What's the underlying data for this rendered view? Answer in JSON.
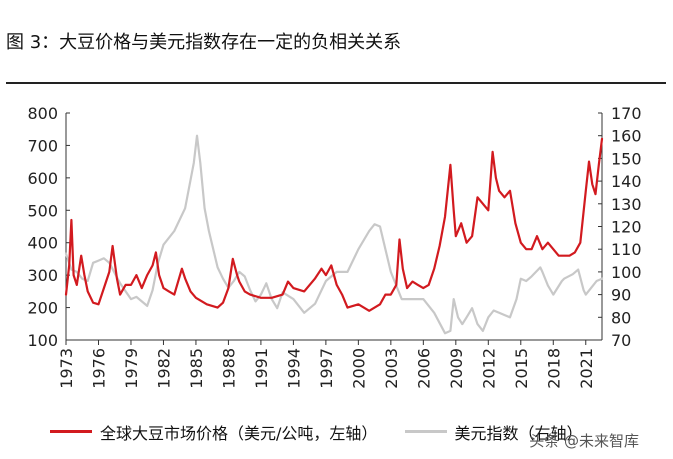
{
  "figure": {
    "title": "图 3：大豆价格与美元指数存在一定的负相关关系",
    "watermark": "头条 @未来智库"
  },
  "chart_data": {
    "type": "line",
    "title": "图 3：大豆价格与美元指数存在一定的负相关关系",
    "x_ticks": [
      "1973",
      "1976",
      "1979",
      "1982",
      "1985",
      "1988",
      "1991",
      "1994",
      "1997",
      "2000",
      "2003",
      "2006",
      "2009",
      "2012",
      "2015",
      "2018",
      "2021"
    ],
    "x_range": [
      1973,
      2022.5
    ],
    "left_axis": {
      "ylim": [
        100,
        800
      ],
      "ticks": [
        800,
        700,
        600,
        500,
        400,
        300,
        200,
        100
      ]
    },
    "right_axis": {
      "ylim": [
        70,
        170
      ],
      "ticks": [
        170,
        160,
        150,
        140,
        130,
        120,
        110,
        100,
        90,
        80,
        70
      ]
    },
    "series": [
      {
        "name": "全球大豆市场价格（美元/公吨，左轴）",
        "axis": "left",
        "color": "#d21a1f",
        "points": [
          [
            1973.0,
            240
          ],
          [
            1973.3,
            330
          ],
          [
            1973.5,
            470
          ],
          [
            1973.7,
            300
          ],
          [
            1974.0,
            270
          ],
          [
            1974.4,
            360
          ],
          [
            1974.7,
            300
          ],
          [
            1975.0,
            250
          ],
          [
            1975.5,
            215
          ],
          [
            1976.0,
            210
          ],
          [
            1976.5,
            260
          ],
          [
            1977.0,
            310
          ],
          [
            1977.3,
            390
          ],
          [
            1977.7,
            290
          ],
          [
            1978.0,
            240
          ],
          [
            1978.5,
            270
          ],
          [
            1979.0,
            270
          ],
          [
            1979.5,
            300
          ],
          [
            1980.0,
            260
          ],
          [
            1980.5,
            300
          ],
          [
            1981.0,
            330
          ],
          [
            1981.3,
            370
          ],
          [
            1981.6,
            300
          ],
          [
            1982.0,
            260
          ],
          [
            1982.5,
            250
          ],
          [
            1983.0,
            240
          ],
          [
            1983.7,
            320
          ],
          [
            1984.0,
            290
          ],
          [
            1984.5,
            250
          ],
          [
            1985.0,
            230
          ],
          [
            1986.0,
            210
          ],
          [
            1987.0,
            200
          ],
          [
            1987.5,
            215
          ],
          [
            1988.0,
            260
          ],
          [
            1988.4,
            350
          ],
          [
            1988.8,
            300
          ],
          [
            1989.0,
            280
          ],
          [
            1989.5,
            250
          ],
          [
            1990.0,
            240
          ],
          [
            1991.0,
            230
          ],
          [
            1992.0,
            230
          ],
          [
            1993.0,
            240
          ],
          [
            1993.5,
            280
          ],
          [
            1994.0,
            260
          ],
          [
            1995.0,
            250
          ],
          [
            1996.0,
            290
          ],
          [
            1996.6,
            320
          ],
          [
            1997.0,
            300
          ],
          [
            1997.5,
            330
          ],
          [
            1998.0,
            270
          ],
          [
            1998.5,
            240
          ],
          [
            1999.0,
            200
          ],
          [
            2000.0,
            210
          ],
          [
            2001.0,
            190
          ],
          [
            2001.5,
            200
          ],
          [
            2002.0,
            210
          ],
          [
            2002.5,
            240
          ],
          [
            2003.0,
            240
          ],
          [
            2003.5,
            270
          ],
          [
            2003.8,
            410
          ],
          [
            2004.1,
            320
          ],
          [
            2004.5,
            260
          ],
          [
            2005.0,
            280
          ],
          [
            2005.5,
            270
          ],
          [
            2006.0,
            260
          ],
          [
            2006.5,
            270
          ],
          [
            2007.0,
            320
          ],
          [
            2007.5,
            390
          ],
          [
            2008.0,
            480
          ],
          [
            2008.5,
            640
          ],
          [
            2008.8,
            500
          ],
          [
            2009.0,
            420
          ],
          [
            2009.5,
            460
          ],
          [
            2010.0,
            400
          ],
          [
            2010.5,
            420
          ],
          [
            2011.0,
            540
          ],
          [
            2011.5,
            520
          ],
          [
            2012.0,
            500
          ],
          [
            2012.4,
            680
          ],
          [
            2012.7,
            600
          ],
          [
            2013.0,
            560
          ],
          [
            2013.5,
            540
          ],
          [
            2014.0,
            560
          ],
          [
            2014.5,
            460
          ],
          [
            2015.0,
            400
          ],
          [
            2015.5,
            380
          ],
          [
            2016.0,
            380
          ],
          [
            2016.5,
            420
          ],
          [
            2017.0,
            380
          ],
          [
            2017.5,
            400
          ],
          [
            2018.0,
            380
          ],
          [
            2018.5,
            360
          ],
          [
            2019.0,
            360
          ],
          [
            2019.5,
            360
          ],
          [
            2020.0,
            370
          ],
          [
            2020.5,
            400
          ],
          [
            2021.0,
            560
          ],
          [
            2021.3,
            650
          ],
          [
            2021.6,
            580
          ],
          [
            2021.9,
            550
          ],
          [
            2022.2,
            640
          ],
          [
            2022.5,
            720
          ]
        ]
      },
      {
        "name": "美元指数（右轴）",
        "axis": "right",
        "color": "#c8c8c8",
        "points": [
          [
            1973.0,
            108
          ],
          [
            1973.5,
            101
          ],
          [
            1974.0,
            100
          ],
          [
            1974.5,
            97
          ],
          [
            1975.0,
            96
          ],
          [
            1975.5,
            104
          ],
          [
            1976.0,
            105
          ],
          [
            1976.5,
            106
          ],
          [
            1977.0,
            104
          ],
          [
            1978.0,
            95
          ],
          [
            1979.0,
            88
          ],
          [
            1979.5,
            89
          ],
          [
            1980.0,
            87
          ],
          [
            1980.5,
            85
          ],
          [
            1981.0,
            92
          ],
          [
            1981.5,
            104
          ],
          [
            1982.0,
            112
          ],
          [
            1983.0,
            118
          ],
          [
            1984.0,
            128
          ],
          [
            1984.8,
            148
          ],
          [
            1985.1,
            160
          ],
          [
            1985.4,
            148
          ],
          [
            1985.8,
            128
          ],
          [
            1986.2,
            118
          ],
          [
            1987.0,
            102
          ],
          [
            1987.5,
            97
          ],
          [
            1988.0,
            93
          ],
          [
            1988.5,
            96
          ],
          [
            1989.0,
            100
          ],
          [
            1989.5,
            98
          ],
          [
            1990.0,
            92
          ],
          [
            1990.5,
            87
          ],
          [
            1991.0,
            90
          ],
          [
            1991.5,
            95
          ],
          [
            1992.0,
            88
          ],
          [
            1992.5,
            84
          ],
          [
            1993.0,
            91
          ],
          [
            1994.0,
            88
          ],
          [
            1995.0,
            82
          ],
          [
            1996.0,
            86
          ],
          [
            1997.0,
            96
          ],
          [
            1998.0,
            100
          ],
          [
            1999.0,
            100
          ],
          [
            2000.0,
            110
          ],
          [
            2001.0,
            118
          ],
          [
            2001.5,
            121
          ],
          [
            2002.0,
            120
          ],
          [
            2002.5,
            110
          ],
          [
            2003.0,
            100
          ],
          [
            2004.0,
            88
          ],
          [
            2005.0,
            88
          ],
          [
            2006.0,
            88
          ],
          [
            2007.0,
            82
          ],
          [
            2008.0,
            73
          ],
          [
            2008.5,
            74
          ],
          [
            2008.8,
            88
          ],
          [
            2009.2,
            80
          ],
          [
            2009.6,
            77
          ],
          [
            2010.0,
            80
          ],
          [
            2010.5,
            84
          ],
          [
            2011.0,
            77
          ],
          [
            2011.5,
            74
          ],
          [
            2012.0,
            80
          ],
          [
            2012.5,
            83
          ],
          [
            2013.0,
            82
          ],
          [
            2014.0,
            80
          ],
          [
            2014.6,
            88
          ],
          [
            2015.0,
            97
          ],
          [
            2015.5,
            96
          ],
          [
            2016.0,
            98
          ],
          [
            2016.8,
            102
          ],
          [
            2017.0,
            100
          ],
          [
            2017.5,
            94
          ],
          [
            2018.0,
            90
          ],
          [
            2018.8,
            96
          ],
          [
            2019.0,
            97
          ],
          [
            2019.8,
            99
          ],
          [
            2020.3,
            101
          ],
          [
            2020.8,
            92
          ],
          [
            2021.0,
            90
          ],
          [
            2021.5,
            93
          ],
          [
            2022.0,
            96
          ],
          [
            2022.5,
            97
          ]
        ]
      }
    ],
    "legend": [
      {
        "label": "全球大豆市场价格（美元/公吨，左轴）",
        "color": "#d21a1f"
      },
      {
        "label": "美元指数（右轴）",
        "color": "#c8c8c8"
      }
    ]
  }
}
